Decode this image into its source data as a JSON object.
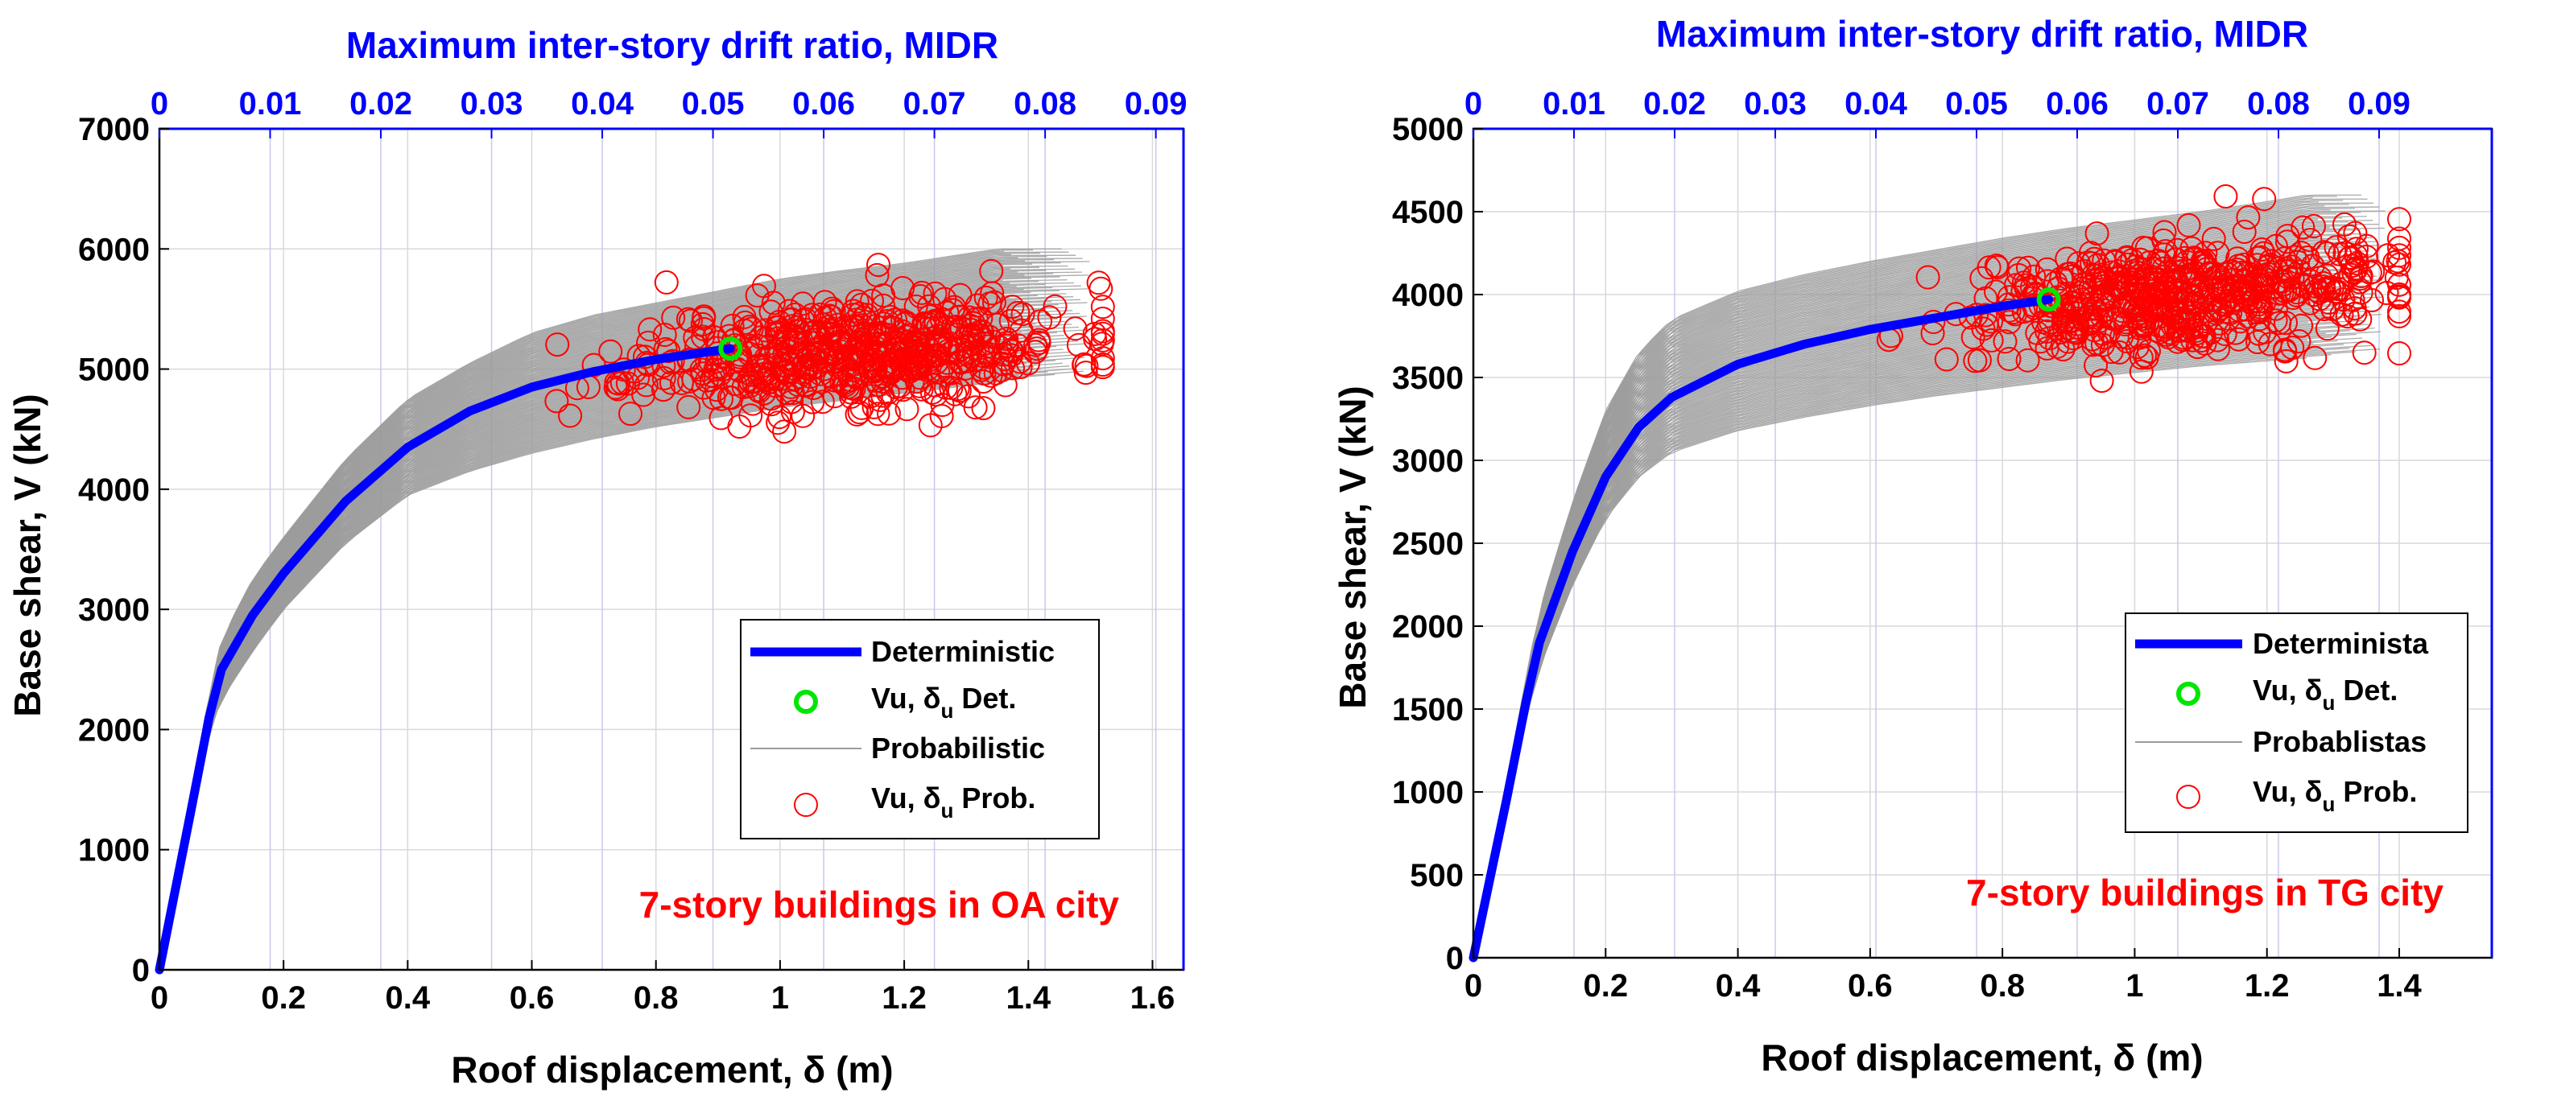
{
  "colors": {
    "deterministic": "#0000ff",
    "probabilistic": "#9b9b9b",
    "det_marker": "#00e600",
    "prob_marker": "#ff0000",
    "top_axis": "#0000ff",
    "annotation": "#ff0000",
    "grid_bottom": "#d9d9d9",
    "grid_top": "#c8c8ee"
  },
  "chart_data": [
    {
      "type": "line",
      "xlabel": "Roof displacement, δ (m)",
      "ylabel": "Base shear, V (kN)",
      "top_xlabel": "Maximum inter-story drift ratio, MIDR",
      "xlim": [
        0,
        1.65
      ],
      "ylim": [
        0,
        7000
      ],
      "xticks": [
        0,
        0.2,
        0.4,
        0.6,
        0.8,
        1,
        1.2,
        1.4,
        1.6
      ],
      "xtick_labels": [
        "0",
        "0.2",
        "0.4",
        "0.6",
        "0.8",
        "1",
        "1.2",
        "1.4",
        "1.6"
      ],
      "yticks": [
        0,
        1000,
        2000,
        3000,
        4000,
        5000,
        6000,
        7000
      ],
      "ytick_labels": [
        "0",
        "1000",
        "2000",
        "3000",
        "4000",
        "5000",
        "6000",
        "7000"
      ],
      "top_xlim": [
        0,
        0.0925
      ],
      "top_xticks": [
        0,
        0.01,
        0.02,
        0.03,
        0.04,
        0.05,
        0.06,
        0.07,
        0.08,
        0.09
      ],
      "top_xtick_labels": [
        "0",
        "0.01",
        "0.02",
        "0.03",
        "0.04",
        "0.05",
        "0.06",
        "0.07",
        "0.08",
        "0.09"
      ],
      "annotation": "7-story buildings in OA city",
      "legend": {
        "deterministic": "Deterministic",
        "det_point_main": "Vu, δ",
        "det_point_sub": "u",
        "det_point_tail": " Det.",
        "probabilistic": "Probabilistic",
        "prob_point_main": "Vu, δ",
        "prob_point_sub": "u",
        "prob_point_tail": " Prob."
      },
      "deterministic": {
        "x": [
          0,
          0.05,
          0.08,
          0.1,
          0.15,
          0.2,
          0.3,
          0.4,
          0.5,
          0.6,
          0.7,
          0.8,
          0.92
        ],
        "y": [
          0,
          1300,
          2100,
          2500,
          2950,
          3300,
          3900,
          4350,
          4650,
          4850,
          4980,
          5080,
          5170
        ]
      },
      "det_point": {
        "x": 0.92,
        "y": 5170
      },
      "probabilistic": {
        "count": 120,
        "upper": {
          "x": [
            0,
            0.05,
            0.08,
            0.1,
            0.15,
            0.2,
            0.3,
            0.4,
            0.5,
            0.6,
            0.7,
            0.8,
            0.9,
            1.0,
            1.1,
            1.2,
            1.3,
            1.35
          ],
          "y": [
            0,
            1400,
            2300,
            2750,
            3250,
            3600,
            4250,
            4750,
            5050,
            5300,
            5450,
            5550,
            5650,
            5750,
            5820,
            5880,
            5960,
            6000
          ]
        },
        "lower": {
          "x": [
            0,
            0.05,
            0.08,
            0.1,
            0.15,
            0.2,
            0.3,
            0.4,
            0.5,
            0.6,
            0.7,
            0.8,
            0.9,
            1.0,
            1.1,
            1.2,
            1.3,
            1.4,
            1.5
          ],
          "y": [
            0,
            1250,
            2000,
            2250,
            2650,
            3000,
            3550,
            3950,
            4150,
            4300,
            4420,
            4520,
            4600,
            4680,
            4740,
            4800,
            4860,
            4920,
            4960
          ]
        }
      },
      "prob_points": {
        "count": 600,
        "seed": 11,
        "x_range": [
          0.64,
          1.52
        ],
        "x_mean": 1.12,
        "x_sd": 0.17,
        "y_center_at_x0": 5000,
        "y_slope": 300,
        "x0": 0.64,
        "y_sd": 230,
        "ylim": [
          4480,
          6060
        ]
      }
    },
    {
      "type": "line",
      "xlabel": "Roof displacement, δ (m)",
      "ylabel": "Base shear, V (kN)",
      "top_xlabel": "Maximum inter-story drift ratio, MIDR",
      "xlim": [
        0,
        1.54
      ],
      "ylim": [
        0,
        5000
      ],
      "xticks": [
        0,
        0.2,
        0.4,
        0.6,
        0.8,
        1,
        1.2,
        1.4
      ],
      "xtick_labels": [
        "0",
        "0.2",
        "0.4",
        "0.6",
        "0.8",
        "1",
        "1.2",
        "1.4"
      ],
      "yticks": [
        0,
        500,
        1000,
        1500,
        2000,
        2500,
        3000,
        3500,
        4000,
        4500,
        5000
      ],
      "ytick_labels": [
        "0",
        "500",
        "1000",
        "1500",
        "2000",
        "2500",
        "3000",
        "3500",
        "4000",
        "4500",
        "5000"
      ],
      "top_xlim": [
        0,
        0.1012
      ],
      "top_xticks": [
        0,
        0.01,
        0.02,
        0.03,
        0.04,
        0.05,
        0.06,
        0.07,
        0.08,
        0.09
      ],
      "top_xtick_labels": [
        "0",
        "0.01",
        "0.02",
        "0.03",
        "0.04",
        "0.05",
        "0.06",
        "0.07",
        "0.08",
        "0.09"
      ],
      "annotation": "7-story buildings in TG city",
      "legend": {
        "deterministic": "Determinista",
        "det_point_main": "Vu, δ",
        "det_point_sub": "u",
        "det_point_tail": " Det.",
        "probabilistic": "Probablistas",
        "prob_point_main": "Vu, δ",
        "prob_point_sub": "u",
        "prob_point_tail": " Prob."
      },
      "deterministic": {
        "x": [
          0,
          0.05,
          0.08,
          0.1,
          0.15,
          0.2,
          0.25,
          0.3,
          0.4,
          0.5,
          0.6,
          0.7,
          0.8,
          0.87
        ],
        "y": [
          0,
          950,
          1550,
          1900,
          2450,
          2900,
          3200,
          3380,
          3580,
          3700,
          3790,
          3860,
          3930,
          3970
        ]
      },
      "det_point": {
        "x": 0.87,
        "y": 3970
      },
      "probabilistic": {
        "count": 120,
        "upper": {
          "x": [
            0,
            0.05,
            0.08,
            0.1,
            0.15,
            0.2,
            0.25,
            0.3,
            0.4,
            0.5,
            0.6,
            0.7,
            0.8,
            0.9,
            1.0,
            1.1,
            1.2,
            1.26
          ],
          "y": [
            0,
            1050,
            1700,
            2100,
            2750,
            3300,
            3650,
            3850,
            4020,
            4120,
            4200,
            4270,
            4340,
            4400,
            4450,
            4500,
            4560,
            4600
          ]
        },
        "lower": {
          "x": [
            0,
            0.05,
            0.08,
            0.1,
            0.15,
            0.2,
            0.25,
            0.3,
            0.4,
            0.5,
            0.6,
            0.7,
            0.8,
            0.9,
            1.0,
            1.1,
            1.2,
            1.3,
            1.38
          ],
          "y": [
            0,
            900,
            1450,
            1750,
            2250,
            2650,
            2900,
            3050,
            3180,
            3260,
            3330,
            3390,
            3440,
            3490,
            3530,
            3570,
            3600,
            3630,
            3650
          ]
        }
      },
      "prob_points": {
        "count": 600,
        "seed": 29,
        "x_range": [
          0.6,
          1.4
        ],
        "x_mean": 1.06,
        "x_sd": 0.16,
        "y_center_at_x0": 3850,
        "y_slope": 300,
        "x0": 0.6,
        "y_sd": 170,
        "ylim": [
          3480,
          4640
        ]
      }
    }
  ]
}
